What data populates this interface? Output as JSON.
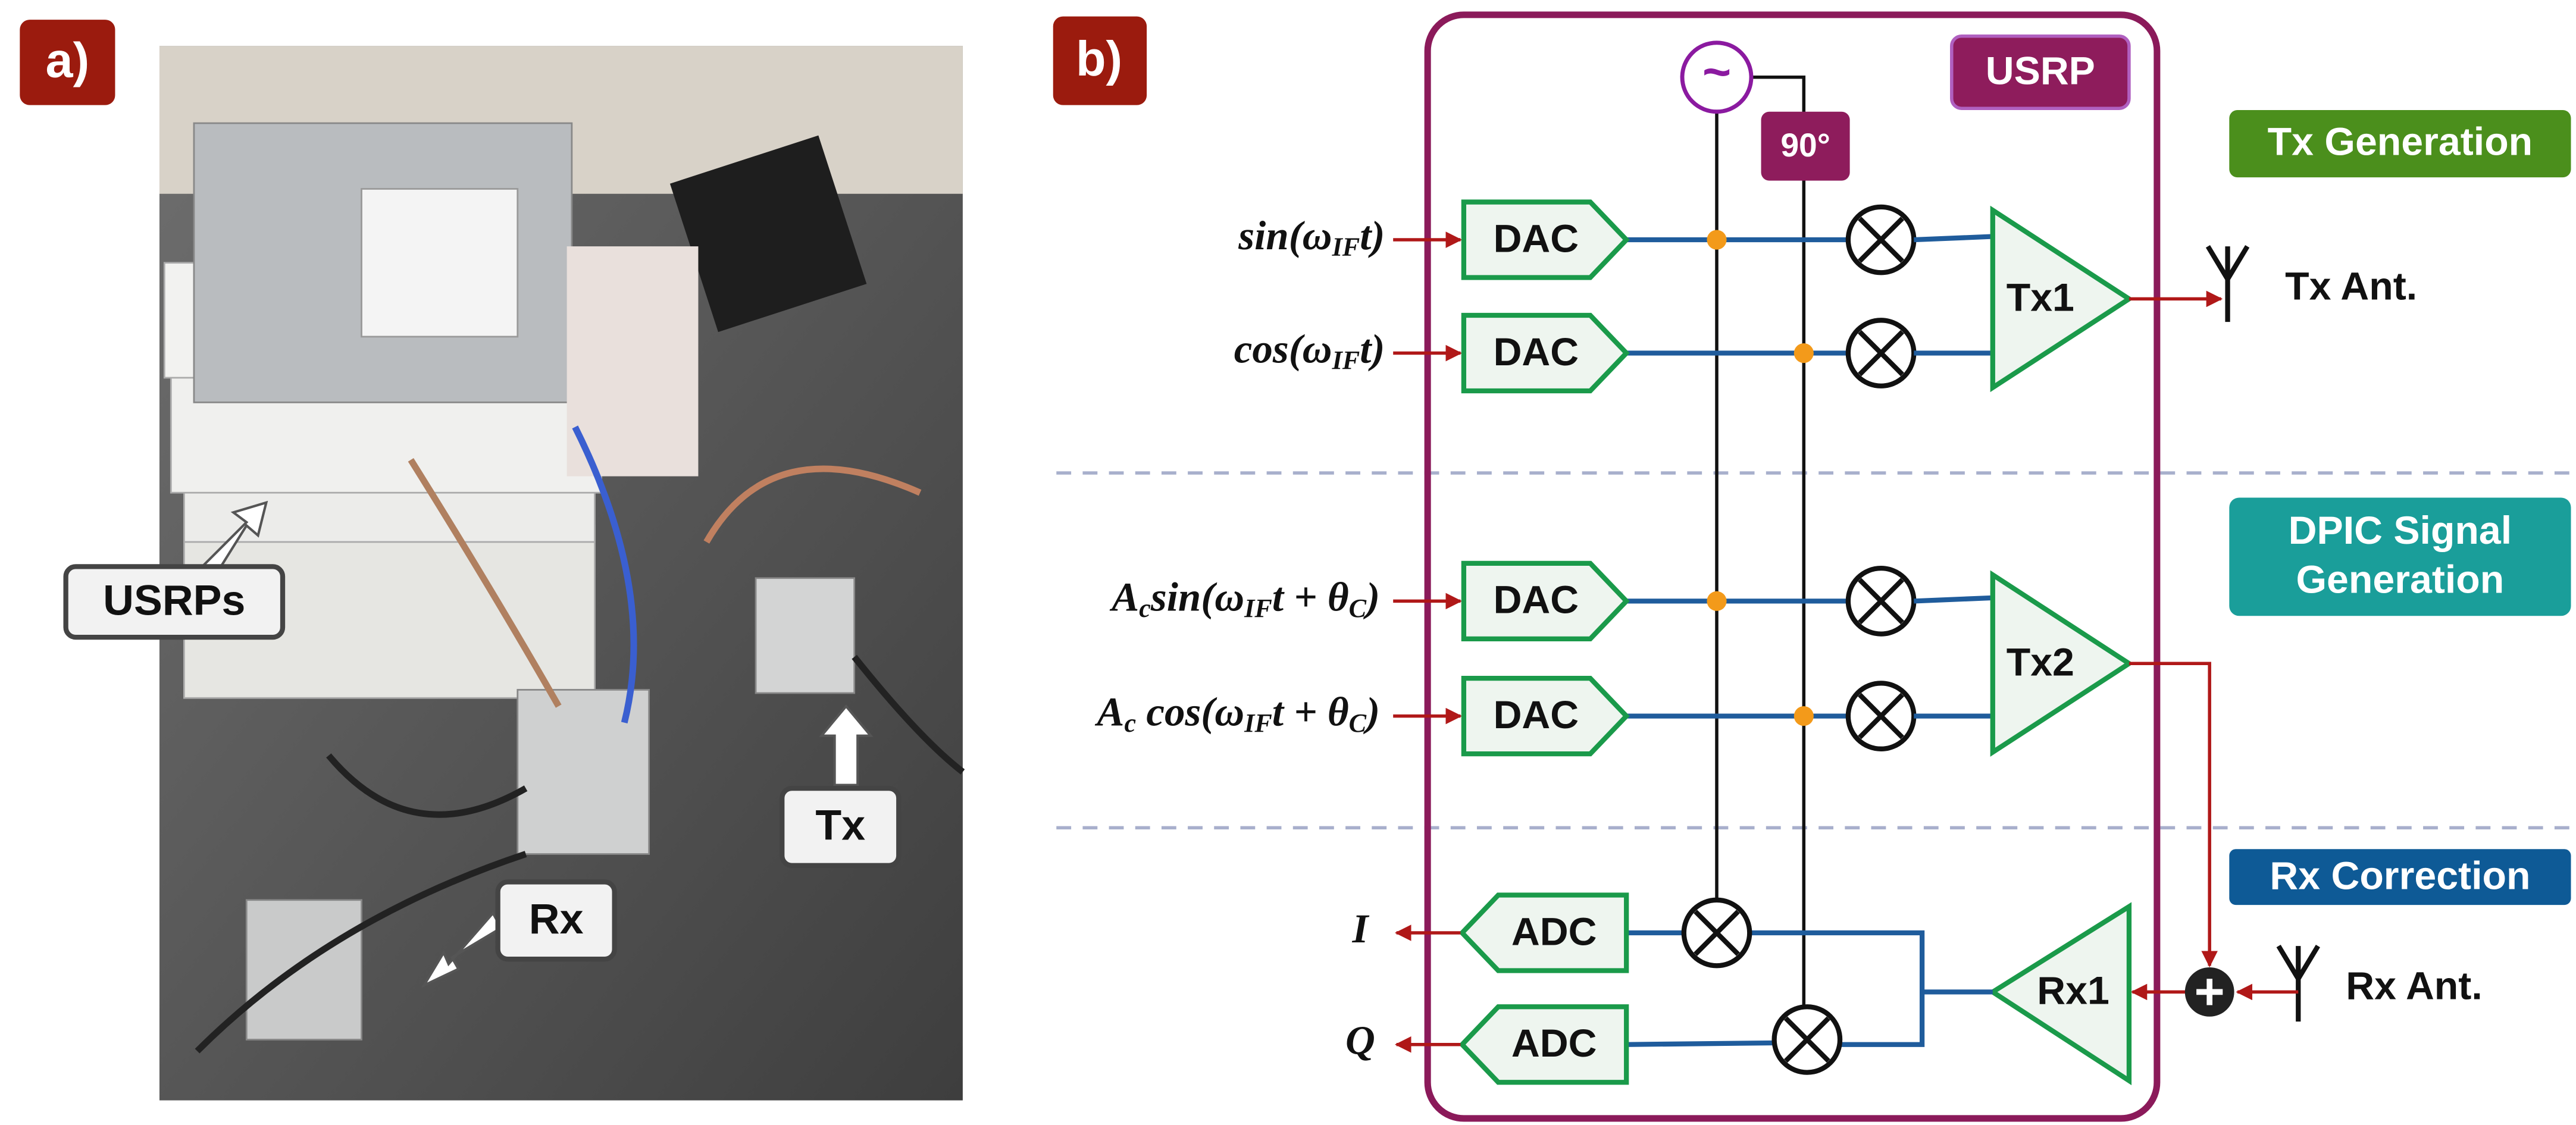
{
  "panel_a": {
    "label": "a)",
    "callouts": [
      "USRPs",
      "Tx",
      "Rx"
    ]
  },
  "panel_b": {
    "label": "b)",
    "usrp": "USRP",
    "oscillator": "~",
    "phase_shift": "90°",
    "sections": [
      "Tx Generation",
      "DPIC Signal Generation",
      "Rx Correction"
    ],
    "inputs": [
      [
        "sin(ω",
        "IF",
        "t)"
      ],
      [
        "cos(ω",
        "IF",
        "t)"
      ],
      [
        "A",
        "c",
        "sin(ω",
        "IF",
        "t + θ",
        "C",
        ")"
      ],
      [
        "A",
        "c",
        " cos(ω",
        "IF",
        "t + θ",
        "C",
        ")"
      ]
    ],
    "dacs": [
      "DAC",
      "DAC",
      "DAC",
      "DAC"
    ],
    "adcs": [
      "ADC",
      "ADC"
    ],
    "outputs": [
      "I",
      "Q"
    ],
    "amplifiers": [
      "Tx1",
      "Tx2",
      "Rx1"
    ],
    "antennas": [
      "Tx Ant.",
      "Rx Ant."
    ]
  }
}
